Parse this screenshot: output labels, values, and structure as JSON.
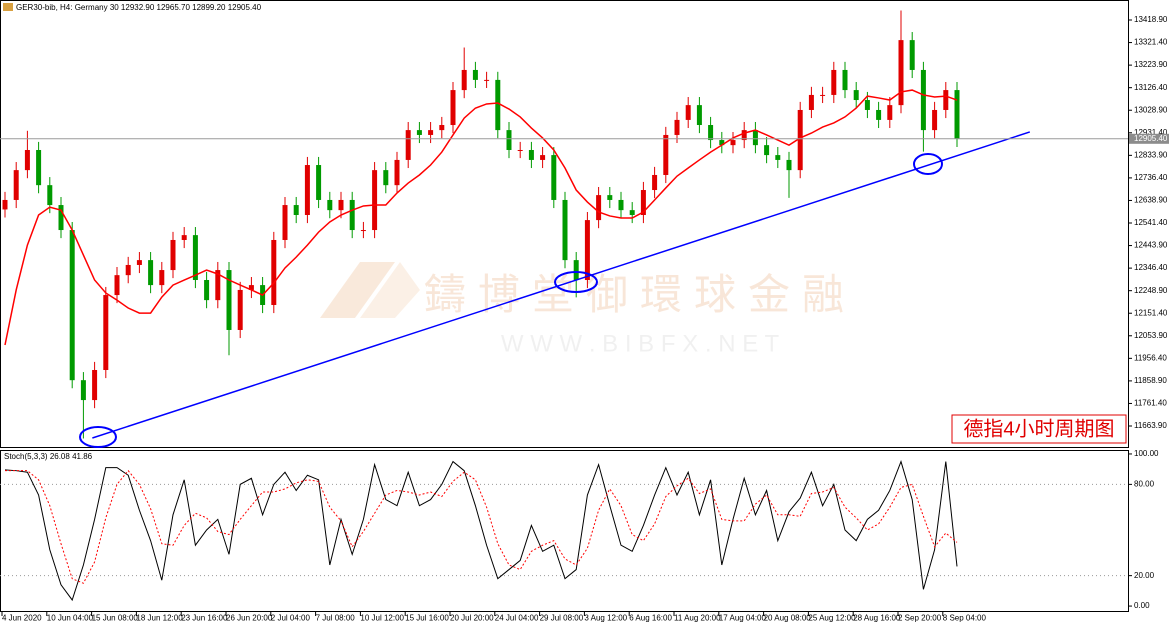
{
  "chart_data": [
    {
      "type": "candlestick",
      "title": "GER30-bib, H4: Germany 30 12932.90 12965.70 12899.20 12905.40",
      "categories": [
        "4 Jun 2020",
        null,
        null,
        null,
        "10 Jun 04:00",
        null,
        null,
        null,
        "15 Jun 08:00",
        null,
        null,
        null,
        "18 Jun 12:00",
        null,
        null,
        null,
        "23 Jun 16:00",
        null,
        null,
        null,
        "26 Jun 20:00",
        null,
        null,
        null,
        "2 Jul 04:00",
        null,
        null,
        null,
        "7 Jul 08:00",
        null,
        null,
        null,
        "10 Jul 12:00",
        null,
        null,
        null,
        "15 Jul 16:00",
        null,
        null,
        null,
        "20 Jul 20:00",
        null,
        null,
        null,
        "24 Jul 04:00",
        null,
        null,
        null,
        "29 Jul 08:00",
        null,
        null,
        null,
        "3 Aug 12:00",
        null,
        null,
        null,
        "6 Aug 16:00",
        null,
        null,
        null,
        "11 Aug 20:00",
        null,
        null,
        null,
        "17 Aug 04:00",
        null,
        null,
        null,
        "20 Aug 08:00",
        null,
        null,
        null,
        "25 Aug 12:00",
        null,
        null,
        null,
        "28 Aug 16:00",
        null,
        null,
        null,
        "2 Sep 20:00",
        null,
        null,
        null,
        "8 Sep 04:00",
        null
      ],
      "open": [
        12600,
        12641,
        12770,
        12857,
        12705,
        12619,
        12511,
        11862,
        11776,
        11906,
        12230,
        12316,
        12360,
        12381,
        12273,
        12338,
        12468,
        12489,
        12295,
        12208,
        12338,
        12079,
        12252,
        12273,
        12187,
        12468,
        12619,
        12576,
        12792,
        12641,
        12597,
        12641,
        12511,
        12511,
        12770,
        12705,
        12814,
        12943,
        12922,
        12943,
        12965,
        13116,
        13203,
        13160,
        13160,
        12943,
        12857,
        12857,
        12814,
        12835,
        12641,
        12381,
        12295,
        12554,
        12662,
        12641,
        12597,
        12576,
        12684,
        12749,
        12922,
        12987,
        13051,
        12965,
        12900,
        12878,
        12900,
        12943,
        12878,
        12835,
        12814,
        12770,
        13030,
        13095,
        13095,
        13203,
        13116,
        13073,
        13030,
        12987,
        13051,
        13332,
        13203,
        12943,
        13030,
        13116
      ],
      "high": [
        12676,
        12805,
        12940,
        12892,
        12740,
        12654,
        12546,
        11897,
        11941,
        12265,
        12351,
        12395,
        12416,
        12416,
        12373,
        12503,
        12524,
        12524,
        12330,
        12373,
        12373,
        12287,
        12308,
        12308,
        12503,
        12654,
        12654,
        12827,
        12827,
        12676,
        12676,
        12676,
        12546,
        12805,
        12805,
        12849,
        12978,
        12978,
        12978,
        13000,
        13151,
        13300,
        13238,
        13195,
        13195,
        12978,
        12892,
        12892,
        12870,
        12870,
        12676,
        12416,
        12589,
        12697,
        12697,
        12676,
        12632,
        12719,
        12784,
        12957,
        13022,
        13086,
        13086,
        13000,
        12935,
        12935,
        12978,
        12978,
        12913,
        12870,
        12849,
        13065,
        13130,
        13130,
        13238,
        13238,
        13151,
        13108,
        13065,
        13086,
        13460,
        13367,
        13238,
        13065,
        13151,
        13151
      ],
      "low": [
        12565,
        12606,
        12735,
        12670,
        12584,
        12476,
        11827,
        11610,
        11741,
        11871,
        12195,
        12281,
        12325,
        12238,
        12238,
        12303,
        12433,
        12260,
        12173,
        12173,
        11970,
        12044,
        12217,
        12152,
        12152,
        12433,
        12541,
        12541,
        12606,
        12562,
        12562,
        12476,
        12476,
        12476,
        12670,
        12670,
        12779,
        12887,
        12887,
        12908,
        12930,
        13081,
        13125,
        13125,
        12908,
        12822,
        12822,
        12779,
        12779,
        12606,
        12346,
        12220,
        12260,
        12519,
        12606,
        12562,
        12541,
        12541,
        12649,
        12714,
        12887,
        12952,
        12930,
        12865,
        12843,
        12843,
        12865,
        12843,
        12800,
        12779,
        12650,
        12735,
        12995,
        13060,
        13060,
        13081,
        13038,
        12995,
        12952,
        12952,
        13016,
        13168,
        12850,
        12908,
        12995,
        12870
      ],
      "close": [
        12641,
        12770,
        12857,
        12705,
        12619,
        12511,
        11862,
        11776,
        11906,
        12230,
        12316,
        12360,
        12381,
        12273,
        12338,
        12468,
        12489,
        12295,
        12208,
        12338,
        12079,
        12252,
        12273,
        12187,
        12468,
        12619,
        12576,
        12792,
        12641,
        12597,
        12641,
        12511,
        12511,
        12770,
        12705,
        12814,
        12943,
        12922,
        12943,
        12965,
        13116,
        13203,
        13160,
        13160,
        12943,
        12857,
        12857,
        12814,
        12835,
        12641,
        12381,
        12295,
        12554,
        12662,
        12641,
        12597,
        12576,
        12684,
        12749,
        12922,
        12987,
        13051,
        12965,
        12900,
        12878,
        12900,
        12943,
        12878,
        12835,
        12814,
        12770,
        13030,
        13095,
        13095,
        13203,
        13116,
        13073,
        13030,
        12987,
        13051,
        13332,
        13203,
        12943,
        13030,
        13116,
        12905.4
      ],
      "up_color": "#e00000",
      "down_color": "#009a00",
      "ma": {
        "color": "#ff0000",
        "values": [
          12014,
          12252,
          12446,
          12576,
          12610,
          12597,
          12511,
          12403,
          12295,
          12239,
          12208,
          12174,
          12152,
          12152,
          12221,
          12273,
          12295,
          12316,
          12338,
          12321,
          12295,
          12273,
          12252,
          12230,
          12282,
          12347,
          12394,
          12446,
          12502,
          12546,
          12576,
          12597,
          12615,
          12619,
          12619,
          12671,
          12714,
          12749,
          12792,
          12848,
          12922,
          12995,
          13038,
          13056,
          13060,
          13034,
          13000,
          12952,
          12909,
          12857,
          12779,
          12684,
          12632,
          12589,
          12572,
          12563,
          12563,
          12589,
          12641,
          12693,
          12744,
          12779,
          12814,
          12848,
          12878,
          12909,
          12930,
          12943,
          12922,
          12900,
          12878,
          12909,
          12930,
          12956,
          12974,
          13000,
          13038,
          13090,
          13082,
          13073,
          13108,
          13116,
          13095,
          13086,
          13090,
          13073
        ]
      },
      "trendline": {
        "color": "#0000ff",
        "x": [
          7.8,
          91.5
        ],
        "y": [
          11612,
          12935
        ]
      },
      "current_price": {
        "value": 12905.4,
        "label": "12905.40"
      },
      "ylim": [
        11568.8,
        13505.4
      ],
      "yticks": [
        {
          "value": 13418.9,
          "label": "13418.90"
        },
        {
          "value": 13321.4,
          "label": "13321.40"
        },
        {
          "value": 13223.9,
          "label": "13223.90"
        },
        {
          "value": 13126.4,
          "label": "13126.40"
        },
        {
          "value": 13028.9,
          "label": "13028.90"
        },
        {
          "value": 12931.4,
          "label": "12931.40"
        },
        {
          "value": 12833.9,
          "label": "12833.90"
        },
        {
          "value": 12736.4,
          "label": "12736.40"
        },
        {
          "value": 12638.9,
          "label": "12638.90"
        },
        {
          "value": 12541.4,
          "label": "12541.40"
        },
        {
          "value": 12443.9,
          "label": "12443.90"
        },
        {
          "value": 12346.4,
          "label": "12346.40"
        },
        {
          "value": 12248.9,
          "label": "12248.90"
        },
        {
          "value": 12151.4,
          "label": "12151.40"
        },
        {
          "value": 12053.9,
          "label": "12053.90"
        },
        {
          "value": 11956.4,
          "label": "11956.40"
        },
        {
          "value": 11858.9,
          "label": "11858.90"
        },
        {
          "value": 11761.4,
          "label": "11761.40"
        },
        {
          "value": 11663.9,
          "label": "11663.90"
        }
      ],
      "watermark": "鑄博堂御環球金融",
      "watermark_url": "W W W . B I B F X . N E T",
      "annotation": "德指4小时周期图"
    },
    {
      "type": "line",
      "title": "Stoch(5,3,3)",
      "series": [
        {
          "color": "#000000",
          "values": [
            89.5,
            89,
            88,
            73,
            37,
            14,
            4,
            27,
            57,
            91,
            91,
            86,
            63,
            43,
            17,
            60,
            83,
            40,
            50,
            57,
            34,
            80,
            84,
            60,
            80,
            88,
            76,
            86,
            83,
            27,
            57,
            34,
            57,
            93,
            70,
            66,
            88,
            66,
            70,
            80,
            95,
            89,
            66,
            40,
            18,
            24,
            30,
            53,
            36,
            40,
            18,
            24,
            73,
            93,
            66,
            40,
            36,
            53,
            73,
            91,
            73,
            88,
            60,
            83,
            27,
            57,
            84,
            60,
            76,
            43,
            62,
            71,
            88,
            66,
            80,
            50,
            43,
            57,
            63,
            76,
            95,
            70,
            11,
            37,
            95,
            26.08
          ]
        },
        {
          "color": "#ff0000",
          "dashed": true,
          "values": [
            89,
            89,
            89,
            83,
            66,
            41,
            18,
            15,
            29,
            58,
            80,
            89,
            80,
            64,
            41,
            40,
            53,
            61,
            58,
            49,
            47,
            57,
            66,
            75,
            75,
            77,
            81,
            83,
            82,
            65,
            56,
            39,
            49,
            61,
            73,
            76,
            75,
            73,
            75,
            72,
            82,
            88,
            83,
            65,
            41,
            27,
            24,
            36,
            40,
            43,
            31,
            27,
            38,
            63,
            77,
            66,
            47,
            43,
            54,
            72,
            79,
            84,
            74,
            77,
            57,
            56,
            56,
            67,
            73,
            60,
            60,
            59,
            74,
            75,
            78,
            65,
            58,
            50,
            54,
            65,
            78,
            80,
            59,
            39,
            48,
            41.86
          ]
        }
      ],
      "ylim": [
        -3.9,
        102.6
      ],
      "yticks": [
        {
          "value": 100,
          "label": "100.00"
        },
        {
          "value": 80,
          "label": "80.00"
        },
        {
          "value": 20,
          "label": "20.00"
        },
        {
          "value": 0,
          "label": "0.00"
        }
      ],
      "levels": [
        80,
        20
      ]
    }
  ]
}
